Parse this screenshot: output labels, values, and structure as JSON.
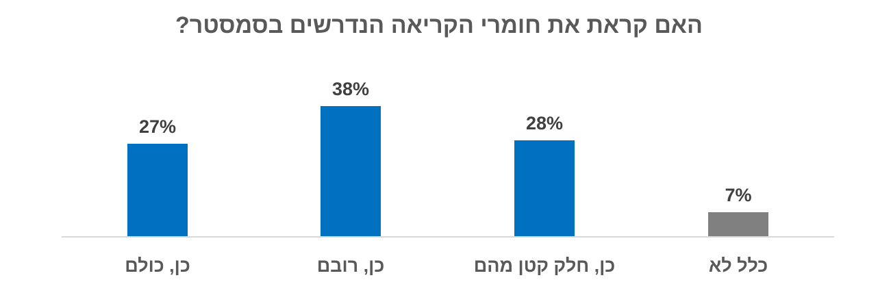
{
  "chart_data": {
    "type": "bar",
    "title": "האם קראת את חומרי הקריאה הנדרשים בסמסטר?",
    "categories": [
      "כן, כולם",
      "כן, רובם",
      "כן, חלק קטן מהם",
      "כלל לא"
    ],
    "values": [
      27,
      38,
      28,
      7
    ],
    "value_labels": [
      "27%",
      "38%",
      "28%",
      "7%"
    ],
    "colors": [
      "#0070C0",
      "#0070C0",
      "#0070C0",
      "#808080"
    ],
    "ylim": [
      0,
      45
    ],
    "grid": false,
    "legend": "none"
  }
}
